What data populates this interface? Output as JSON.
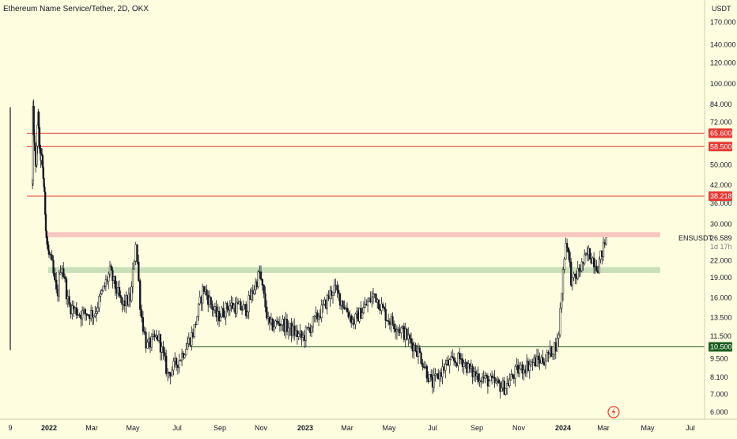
{
  "chart_title": "Ethereum Name Service/Tether, 2D, OKX",
  "currency": "USDT",
  "symbol_label": "ENSUSDT",
  "price_label": "26.589",
  "countdown": "1d 17h",
  "colors": {
    "background": "#fffde0",
    "candle": "#131722",
    "resistance_line": "#e53935",
    "support_line": "#1b5e20",
    "upper_zone": "#f8c6c0",
    "lower_zone": "#c9dfb8"
  },
  "chart_data": {
    "type": "candlestick",
    "title": "Ethereum Name Service/Tether, 2D, OKX",
    "y_scale": "log",
    "ylim": [
      5.8,
      185
    ],
    "y_ticks": [
      "170.000",
      "140.000",
      "120.000",
      "100.000",
      "84.000",
      "72.000",
      "58.500",
      "50.000",
      "42.000",
      "36.000",
      "30.000",
      "26.589",
      "22.000",
      "19.000",
      "16.000",
      "13.500",
      "11.500",
      "9.500",
      "8.100",
      "7.000",
      "6.000"
    ],
    "x_ticks": [
      "9",
      "2022",
      "Mar",
      "May",
      "Jul",
      "Sep",
      "Nov",
      "2023",
      "Mar",
      "May",
      "Jul",
      "Sep",
      "Nov",
      "2024",
      "Mar",
      "May",
      "Jul"
    ],
    "bold_x_ticks": [
      "2022",
      "2023",
      "2024"
    ],
    "last_price": 26.589,
    "horizontal_lines": [
      {
        "value": 65.6,
        "label": "65.600",
        "kind": "resistance"
      },
      {
        "value": 58.5,
        "label": "58.500",
        "kind": "resistance"
      },
      {
        "value": 38.218,
        "label": "38.218",
        "kind": "resistance"
      },
      {
        "value": 10.5,
        "label": "10.500",
        "kind": "support"
      }
    ],
    "zones": [
      {
        "low": 26.9,
        "high": 28.1,
        "kind": "upper",
        "from_date": "2021-12-20"
      },
      {
        "low": 19.8,
        "high": 20.8,
        "kind": "lower",
        "from_date": "2021-12-29"
      }
    ],
    "price_path": [
      [
        "2021-11-10",
        43
      ],
      [
        "2021-11-12",
        78
      ],
      [
        "2021-11-16",
        58
      ],
      [
        "2021-11-22",
        48
      ],
      [
        "2021-11-27",
        80
      ],
      [
        "2021-12-03",
        55
      ],
      [
        "2021-12-10",
        52
      ],
      [
        "2021-12-16",
        42
      ],
      [
        "2021-12-24",
        27
      ],
      [
        "2022-01-05",
        21
      ],
      [
        "2022-01-12",
        16
      ],
      [
        "2022-01-18",
        22
      ],
      [
        "2022-01-28",
        15
      ],
      [
        "2022-02-12",
        14
      ],
      [
        "2022-03-05",
        14
      ],
      [
        "2022-03-28",
        20
      ],
      [
        "2022-04-15",
        15
      ],
      [
        "2022-04-28",
        16
      ],
      [
        "2022-05-05",
        26
      ],
      [
        "2022-05-12",
        14
      ],
      [
        "2022-05-20",
        10.5
      ],
      [
        "2022-06-05",
        11.5
      ],
      [
        "2022-06-18",
        8.3
      ],
      [
        "2022-07-05",
        9.5
      ],
      [
        "2022-07-25",
        12
      ],
      [
        "2022-08-08",
        17.5
      ],
      [
        "2022-08-28",
        13.5
      ],
      [
        "2022-09-15",
        15
      ],
      [
        "2022-10-10",
        14.5
      ],
      [
        "2022-10-30",
        19.8
      ],
      [
        "2022-11-12",
        12.5
      ],
      [
        "2022-11-28",
        13
      ],
      [
        "2022-12-28",
        11.3
      ],
      [
        "2023-01-25",
        14.5
      ],
      [
        "2023-02-10",
        17.5
      ],
      [
        "2023-03-10",
        13
      ],
      [
        "2023-04-10",
        16.5
      ],
      [
        "2023-04-28",
        13.5
      ],
      [
        "2023-05-20",
        12
      ],
      [
        "2023-06-12",
        10
      ],
      [
        "2023-06-30",
        7.6
      ],
      [
        "2023-07-20",
        9
      ],
      [
        "2023-08-10",
        9.5
      ],
      [
        "2023-08-25",
        8.4
      ],
      [
        "2023-09-20",
        7.8
      ],
      [
        "2023-10-12",
        7.4
      ],
      [
        "2023-10-28",
        8.5
      ],
      [
        "2023-11-20",
        9.2
      ],
      [
        "2023-12-08",
        9.5
      ],
      [
        "2023-12-25",
        11
      ],
      [
        "2024-01-02",
        22
      ],
      [
        "2024-01-06",
        27
      ],
      [
        "2024-01-14",
        18
      ],
      [
        "2024-02-08",
        23.5
      ],
      [
        "2024-02-22",
        21
      ],
      [
        "2024-03-05",
        26.589
      ]
    ]
  }
}
